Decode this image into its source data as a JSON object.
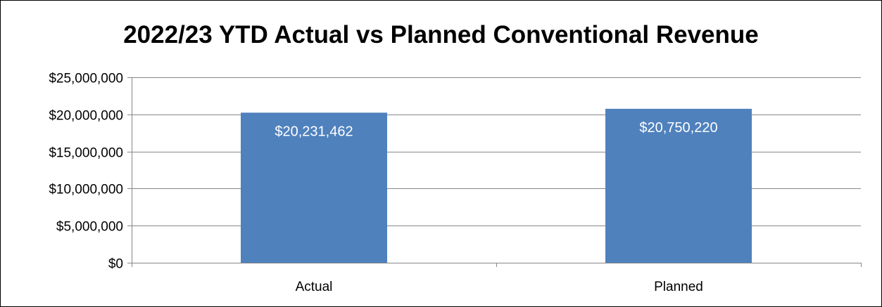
{
  "chart_data": {
    "type": "bar",
    "title": "2022/23 YTD Actual vs Planned Conventional Revenue",
    "categories": [
      "Actual",
      "Planned"
    ],
    "values": [
      20231462,
      20750220
    ],
    "data_labels": [
      "$20,231,462",
      "$20,750,220"
    ],
    "xlabel": "",
    "ylabel": "",
    "ylim": [
      0,
      25000000
    ],
    "y_ticks": [
      0,
      5000000,
      10000000,
      15000000,
      20000000,
      25000000
    ],
    "y_tick_labels": [
      "$0",
      "$5,000,000",
      "$10,000,000",
      "$15,000,000",
      "$20,000,000",
      "$25,000,000"
    ],
    "grid": true,
    "legend": "none",
    "bar_color": "#4f81bd",
    "gridline_color": "#878787"
  }
}
